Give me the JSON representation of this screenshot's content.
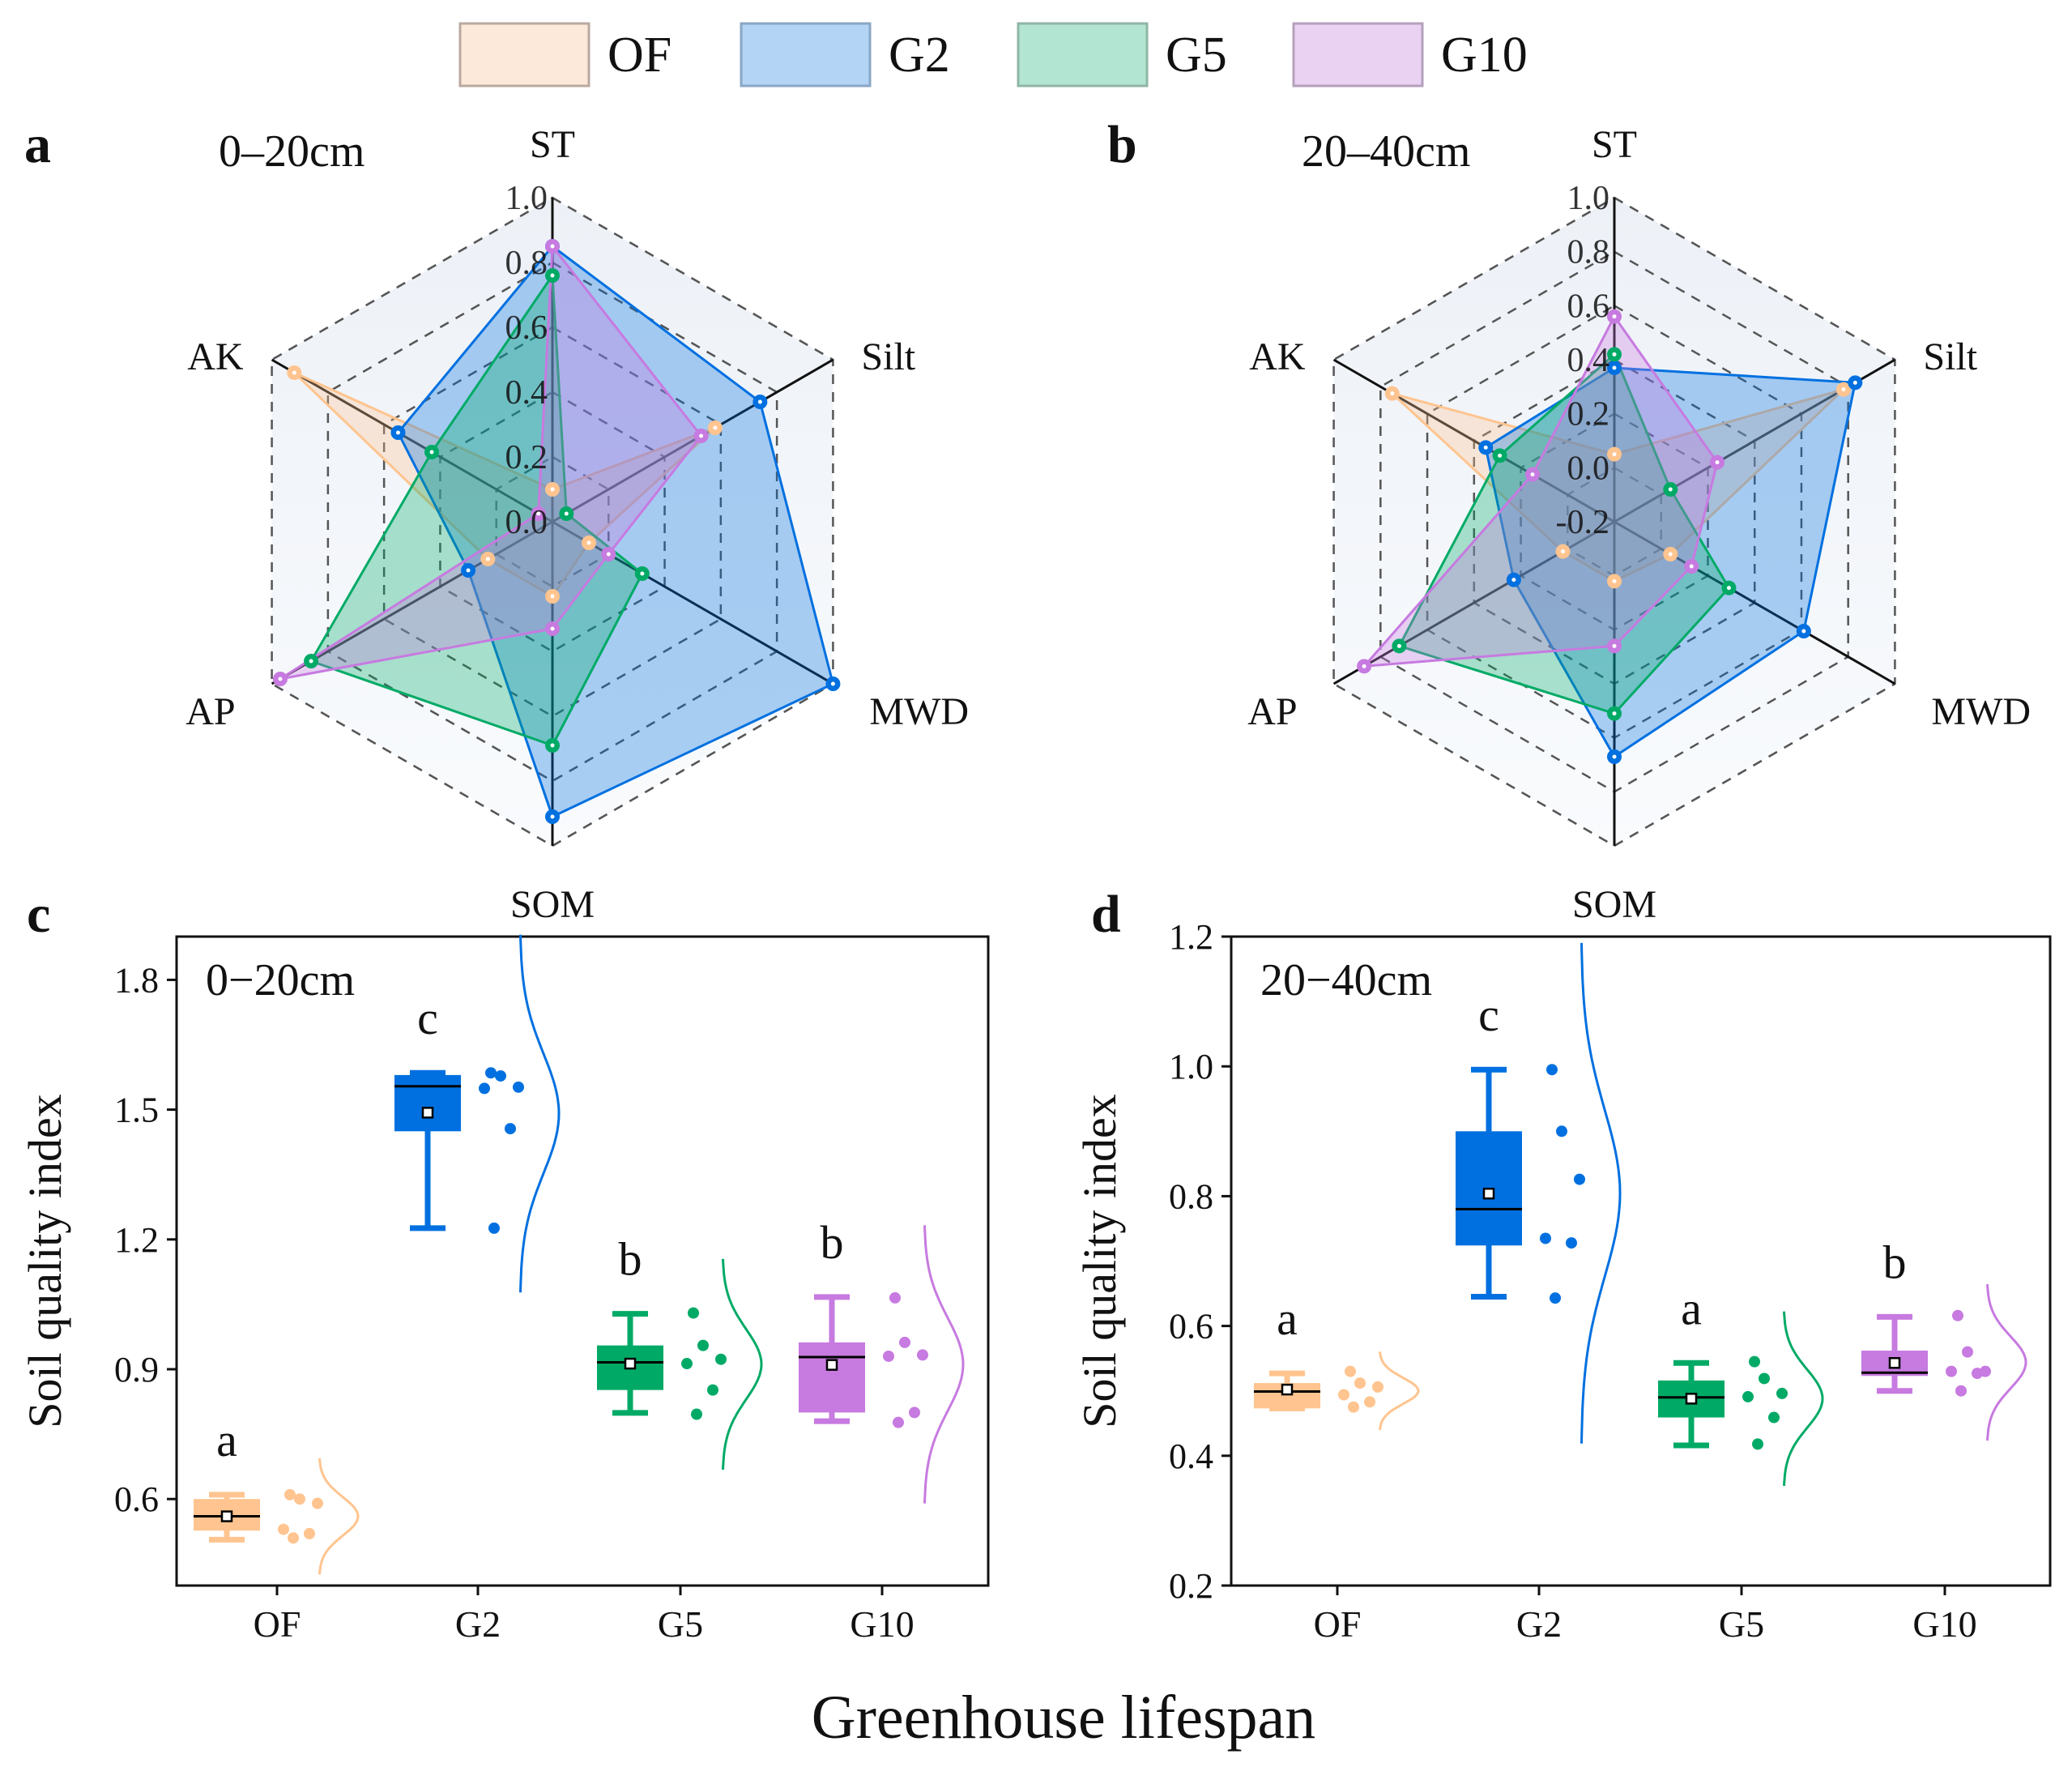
{
  "legend": {
    "items": [
      {
        "label": "OF",
        "fill": "#fde9d9",
        "stroke": "#b9a9a0"
      },
      {
        "label": "G2",
        "fill": "#b3d4f5",
        "stroke": "#8aa6c4"
      },
      {
        "label": "G5",
        "fill": "#b3e6d2",
        "stroke": "#8fb5a6"
      },
      {
        "label": "G10",
        "fill": "#ead2f2",
        "stroke": "#b5a0bd"
      }
    ]
  },
  "series_colors": {
    "OF": "#ffc48f",
    "G2": "#0070e0",
    "G5": "#00aa66",
    "G10": "#c77ae0"
  },
  "xlabel": "Greenhouse lifespan",
  "chart_data": [
    {
      "type": "radar",
      "panel": "a",
      "title": "0–20cm",
      "axes": [
        "ST",
        "Silt",
        "MWD",
        "SOM",
        "AP",
        "AK"
      ],
      "rlim": [
        0,
        1.0
      ],
      "ticks": [
        "0.0",
        "0.2",
        "0.4",
        "0.6",
        "0.8",
        "1.0"
      ],
      "series": [
        {
          "name": "OF",
          "values": [
            0.1,
            0.58,
            0.13,
            0.23,
            0.23,
            0.92
          ]
        },
        {
          "name": "G2",
          "values": [
            0.85,
            0.74,
            1.0,
            0.91,
            0.3,
            0.55
          ]
        },
        {
          "name": "G5",
          "values": [
            0.76,
            0.05,
            0.32,
            0.69,
            0.86,
            0.43
          ]
        },
        {
          "name": "G10",
          "values": [
            0.85,
            0.53,
            0.2,
            0.33,
            0.97,
            0.05
          ]
        }
      ]
    },
    {
      "type": "radar",
      "panel": "b",
      "title": "20–40cm",
      "axes": [
        "ST",
        "Silt",
        "MWD",
        "SOM",
        "AP",
        "AK"
      ],
      "rlim": [
        -0.2,
        1.0
      ],
      "ticks": [
        "-0.2",
        "0.0",
        "0.2",
        "0.4",
        "0.6",
        "0.8",
        "1.0"
      ],
      "series": [
        {
          "name": "OF",
          "values": [
            0.05,
            0.78,
            0.04,
            0.02,
            0.02,
            0.75
          ]
        },
        {
          "name": "G2",
          "values": [
            0.37,
            0.83,
            0.61,
            0.67,
            0.23,
            0.35
          ]
        },
        {
          "name": "G5",
          "values": [
            0.42,
            0.04,
            0.29,
            0.51,
            0.72,
            0.29
          ]
        },
        {
          "name": "G10",
          "values": [
            0.56,
            0.24,
            0.13,
            0.26,
            0.87,
            0.15
          ]
        }
      ]
    },
    {
      "type": "box",
      "panel": "c",
      "title": "0−20cm",
      "ylabel": "Soil quality index",
      "ylim": [
        0.4,
        1.9
      ],
      "yticks": [
        "0.6",
        "0.9",
        "1.2",
        "1.5",
        "1.8"
      ],
      "categories": [
        "OF",
        "G2",
        "G5",
        "G10"
      ],
      "series": [
        {
          "name": "OF",
          "letter": "a",
          "whisker": [
            0.506,
            0.61
          ],
          "q1": 0.527,
          "q3": 0.6,
          "median": 0.56,
          "mean": 0.56,
          "points": [
            0.51,
            0.52,
            0.53,
            0.59,
            0.6,
            0.61
          ]
        },
        {
          "name": "G2",
          "letter": "c",
          "whisker": [
            1.226,
            1.585
          ],
          "q1": 1.45,
          "q3": 1.58,
          "median": 1.554,
          "mean": 1.493,
          "points": [
            1.226,
            1.456,
            1.549,
            1.552,
            1.578,
            1.585
          ]
        },
        {
          "name": "G5",
          "letter": "b",
          "whisker": [
            0.799,
            1.028
          ],
          "q1": 0.852,
          "q3": 0.955,
          "median": 0.916,
          "mean": 0.913,
          "points": [
            0.796,
            0.852,
            0.913,
            0.923,
            0.955,
            1.03
          ]
        },
        {
          "name": "G10",
          "letter": "b",
          "whisker": [
            0.78,
            1.067
          ],
          "q1": 0.8,
          "q3": 0.962,
          "median": 0.928,
          "mean": 0.91,
          "points": [
            0.777,
            0.8,
            0.93,
            0.933,
            0.962,
            1.065
          ]
        }
      ]
    },
    {
      "type": "box",
      "panel": "d",
      "title": "20−40cm",
      "ylabel": "Soil quality index",
      "ylim": [
        0.2,
        1.2
      ],
      "yticks": [
        "0.2",
        "0.4",
        "0.6",
        "0.8",
        "1.0",
        "1.2"
      ],
      "categories": [
        "OF",
        "G2",
        "G5",
        "G10"
      ],
      "series": [
        {
          "name": "OF",
          "letter": "a",
          "whisker": [
            0.473,
            0.527
          ],
          "q1": 0.473,
          "q3": 0.512,
          "median": 0.499,
          "mean": 0.502,
          "points": [
            0.475,
            0.483,
            0.494,
            0.506,
            0.512,
            0.53
          ]
        },
        {
          "name": "G2",
          "letter": "c",
          "whisker": [
            0.645,
            0.995
          ],
          "q1": 0.724,
          "q3": 0.9,
          "median": 0.78,
          "mean": 0.804,
          "points": [
            0.643,
            0.728,
            0.735,
            0.826,
            0.9,
            0.995
          ]
        },
        {
          "name": "G5",
          "letter": "a",
          "whisker": [
            0.416,
            0.543
          ],
          "q1": 0.459,
          "q3": 0.516,
          "median": 0.49,
          "mean": 0.488,
          "points": [
            0.418,
            0.459,
            0.491,
            0.496,
            0.519,
            0.545
          ]
        },
        {
          "name": "G10",
          "letter": "b",
          "whisker": [
            0.5,
            0.614
          ],
          "q1": 0.523,
          "q3": 0.562,
          "median": 0.528,
          "mean": 0.543,
          "points": [
            0.5,
            0.527,
            0.53,
            0.53,
            0.56,
            0.616
          ]
        }
      ]
    }
  ]
}
